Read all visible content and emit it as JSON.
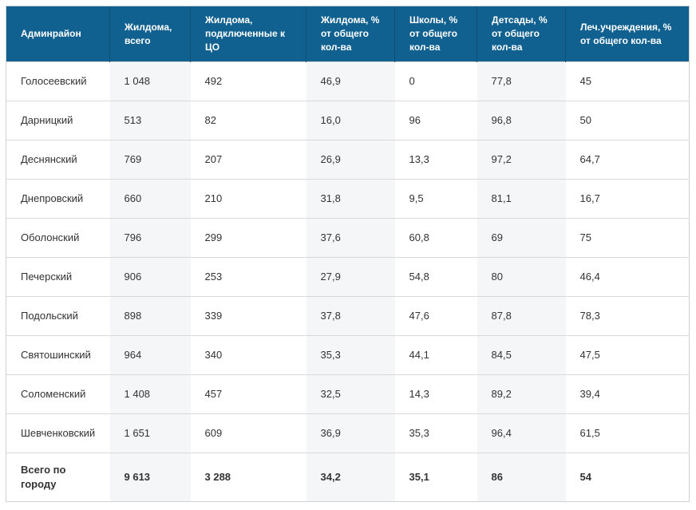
{
  "colors": {
    "header_bg": "#116190",
    "header_text": "#ffffff",
    "column_stripe": "#f5f6f8",
    "row_line": "#d8d9db",
    "table_border": "#cfd1d3",
    "body_text": "#333333"
  },
  "table": {
    "columns": [
      "Админрайон",
      "Жилдома, всего",
      "Жилдома, подключенные к ЦО",
      "Жилдома, % от общего кол-ва",
      "Школы, % от общего кол-ва",
      "Детсады, % от общего кол-ва",
      "Леч.учреждения, % от общего кол-ва"
    ],
    "rows": [
      {
        "cells": [
          "Голосеевский",
          "1 048",
          "492",
          "46,9",
          "0",
          "77,8",
          "45"
        ]
      },
      {
        "cells": [
          "Дарницкий",
          "513",
          "82",
          "16,0",
          "96",
          "96,8",
          "50"
        ]
      },
      {
        "cells": [
          "Деснянский",
          "769",
          "207",
          "26,9",
          "13,3",
          "97,2",
          "64,7"
        ]
      },
      {
        "cells": [
          "Днепровский",
          "660",
          "210",
          "31,8",
          "9,5",
          "81,1",
          "16,7"
        ]
      },
      {
        "cells": [
          "Оболонский",
          "796",
          "299",
          "37,6",
          "60,8",
          "69",
          "75"
        ]
      },
      {
        "cells": [
          "Печерский",
          "906",
          "253",
          "27,9",
          "54,8",
          "80",
          "46,4"
        ]
      },
      {
        "cells": [
          "Подольский",
          "898",
          "339",
          "37,8",
          "47,6",
          "87,8",
          "78,3"
        ]
      },
      {
        "cells": [
          "Святошинский",
          "964",
          "340",
          "35,3",
          "44,1",
          "84,5",
          "47,5"
        ]
      },
      {
        "cells": [
          "Соломенский",
          "1 408",
          "457",
          "32,5",
          "14,3",
          "89,2",
          "39,4"
        ]
      },
      {
        "cells": [
          "Шевченковский",
          "1 651",
          "609",
          "36,9",
          "35,3",
          "96,4",
          "61,5"
        ]
      },
      {
        "cells": [
          "Всего по городу",
          "9 613",
          "3 288",
          "34,2",
          "35,1",
          "86",
          "54"
        ],
        "is_total": true
      }
    ]
  }
}
